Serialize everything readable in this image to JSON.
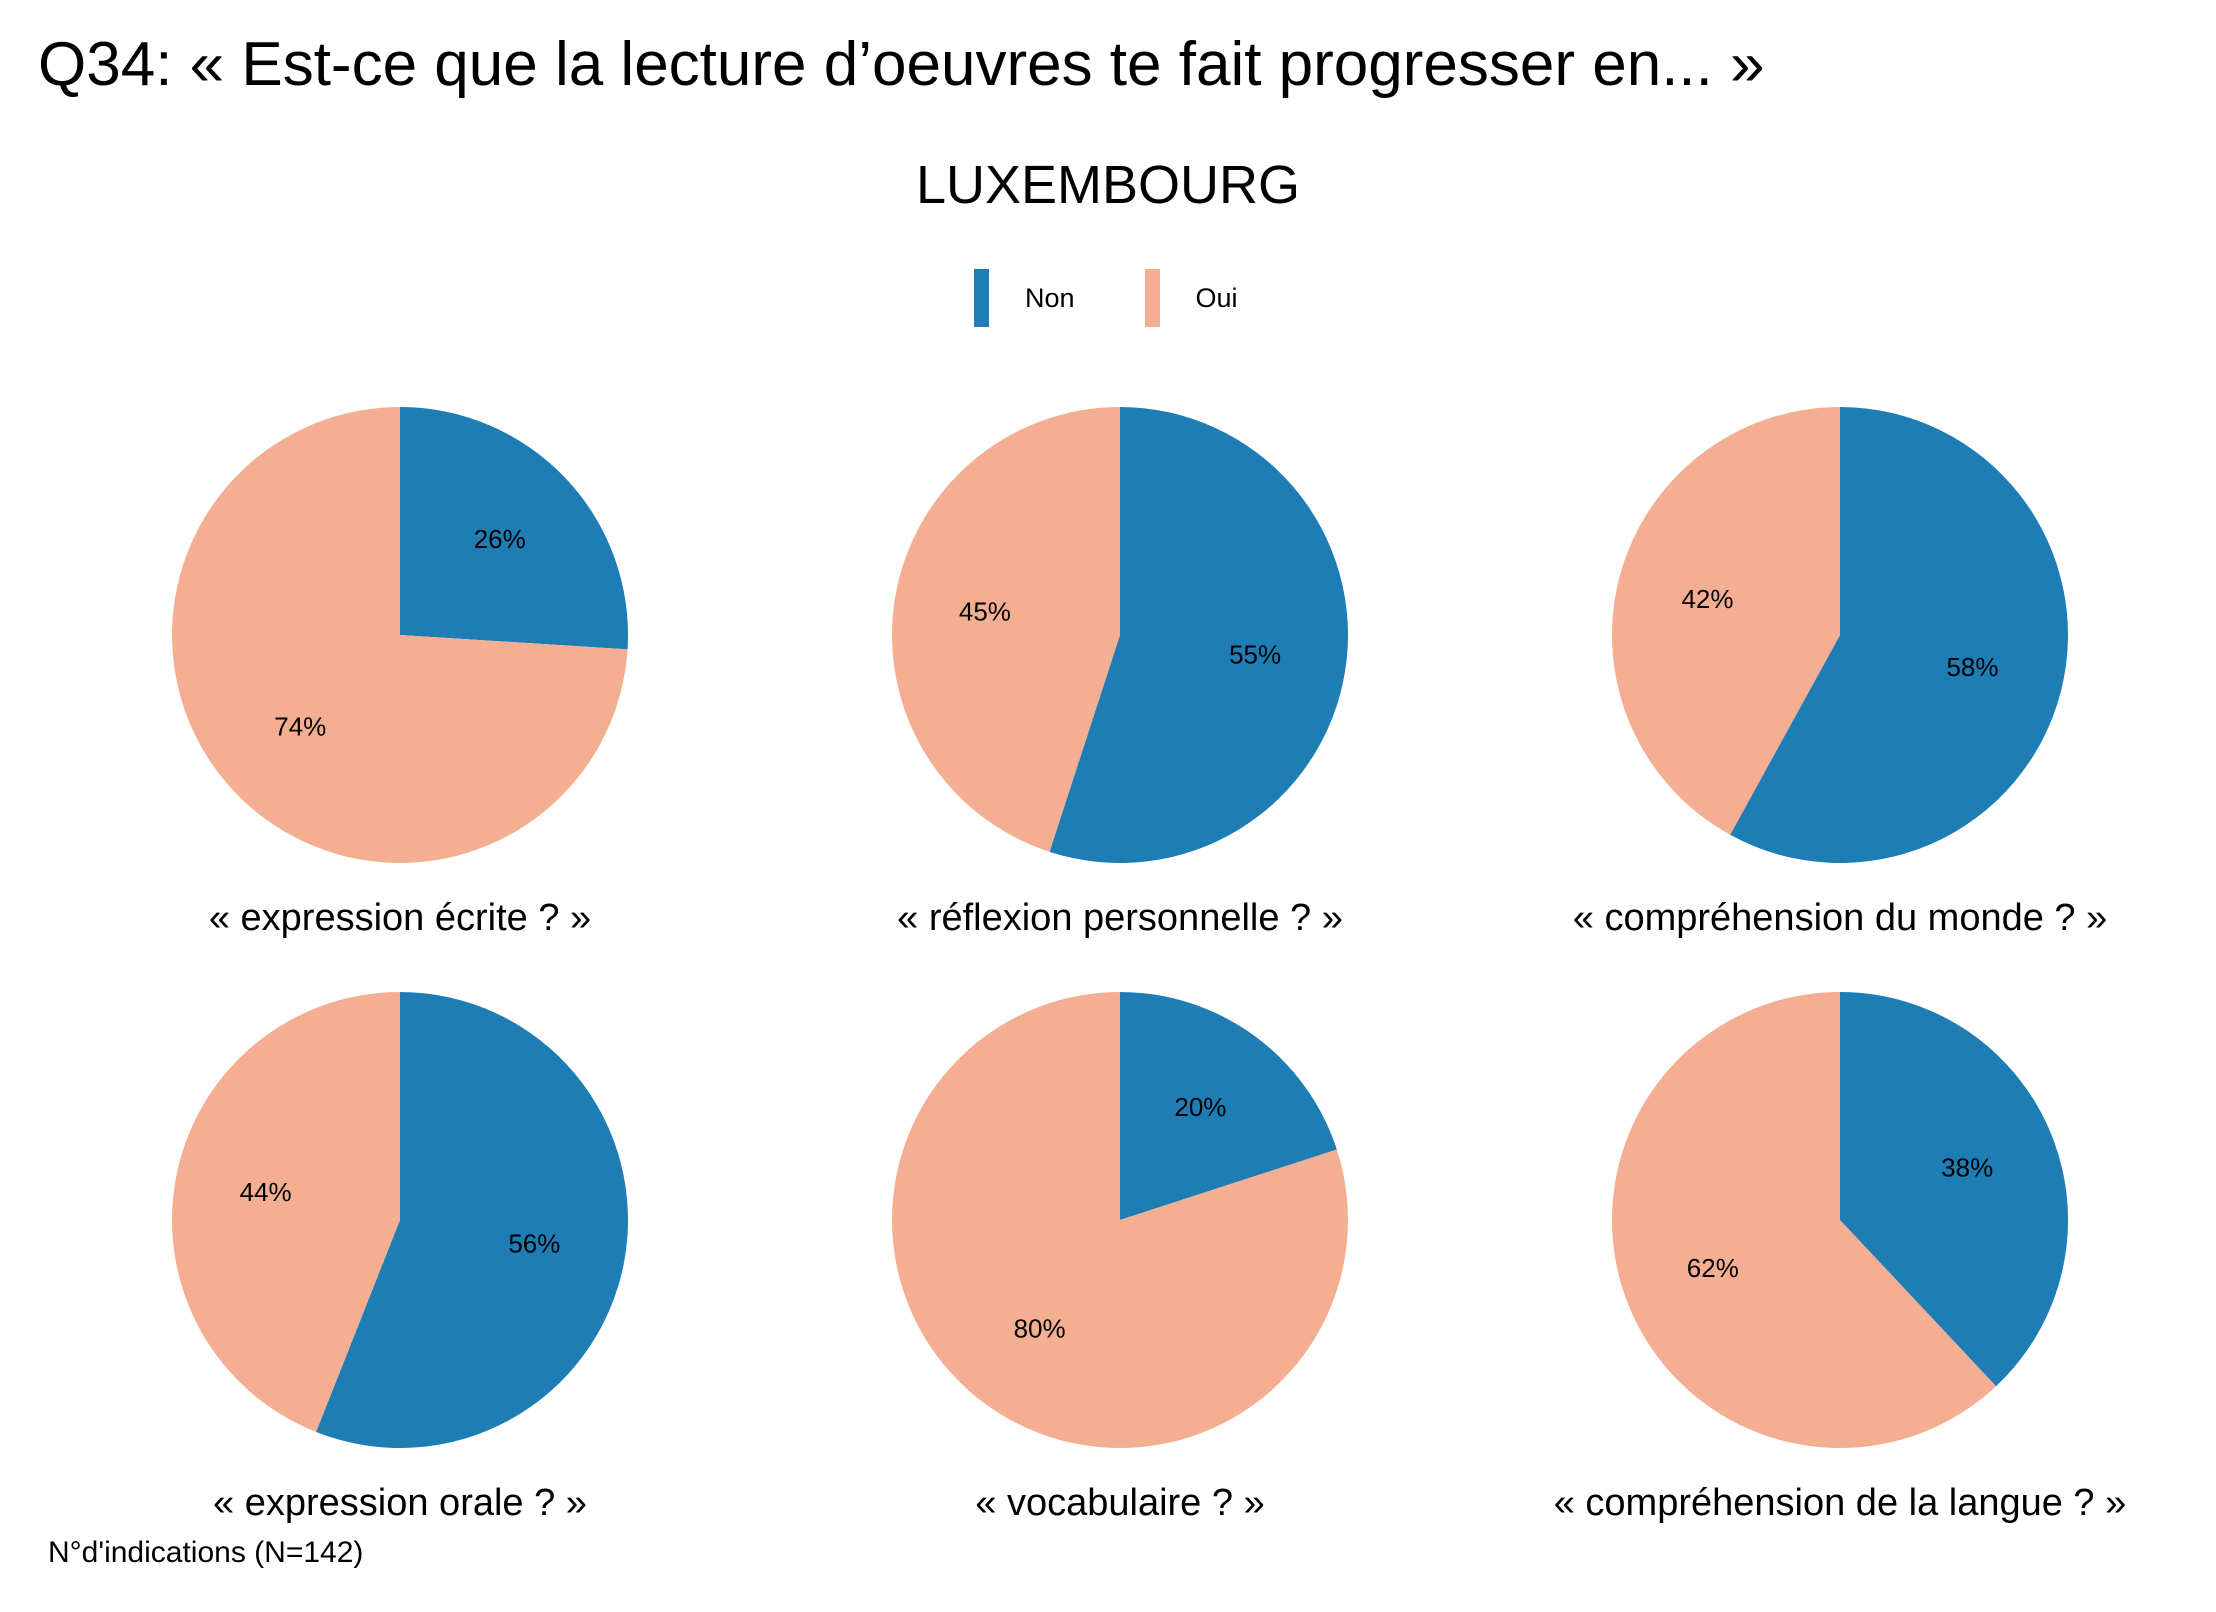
{
  "title": "Q34: « Est-ce que la lecture d’oeuvres te fait progresser en... »",
  "subtitle": "LUXEMBOURG",
  "footnote": "N°d'indications (N=142)",
  "colors": {
    "Non": "#1f7db5",
    "Oui": "#f4ae91"
  },
  "legend": [
    {
      "label": "Non",
      "color": "#1f7db5"
    },
    {
      "label": "Oui",
      "color": "#f4ae91"
    }
  ],
  "chart_data": [
    {
      "type": "pie",
      "title": "« expression écrite ? »",
      "categories": [
        "Non",
        "Oui"
      ],
      "values": [
        26,
        74
      ],
      "labels": [
        "26%",
        "74%"
      ]
    },
    {
      "type": "pie",
      "title": "« réflexion personnelle ? »",
      "categories": [
        "Non",
        "Oui"
      ],
      "values": [
        55,
        45
      ],
      "labels": [
        "55%",
        "45%"
      ]
    },
    {
      "type": "pie",
      "title": "« compréhension du monde ? »",
      "categories": [
        "Non",
        "Oui"
      ],
      "values": [
        58,
        42
      ],
      "labels": [
        "58%",
        "42%"
      ]
    },
    {
      "type": "pie",
      "title": "« expression orale ? »",
      "categories": [
        "Non",
        "Oui"
      ],
      "values": [
        56,
        44
      ],
      "labels": [
        "56%",
        "44%"
      ]
    },
    {
      "type": "pie",
      "title": "« vocabulaire ? »",
      "categories": [
        "Non",
        "Oui"
      ],
      "values": [
        20,
        80
      ],
      "labels": [
        "20%",
        "80%"
      ]
    },
    {
      "type": "pie",
      "title": "« compréhension de la langue ? »",
      "categories": [
        "Non",
        "Oui"
      ],
      "values": [
        38,
        62
      ],
      "labels": [
        "38%",
        "62%"
      ]
    }
  ]
}
